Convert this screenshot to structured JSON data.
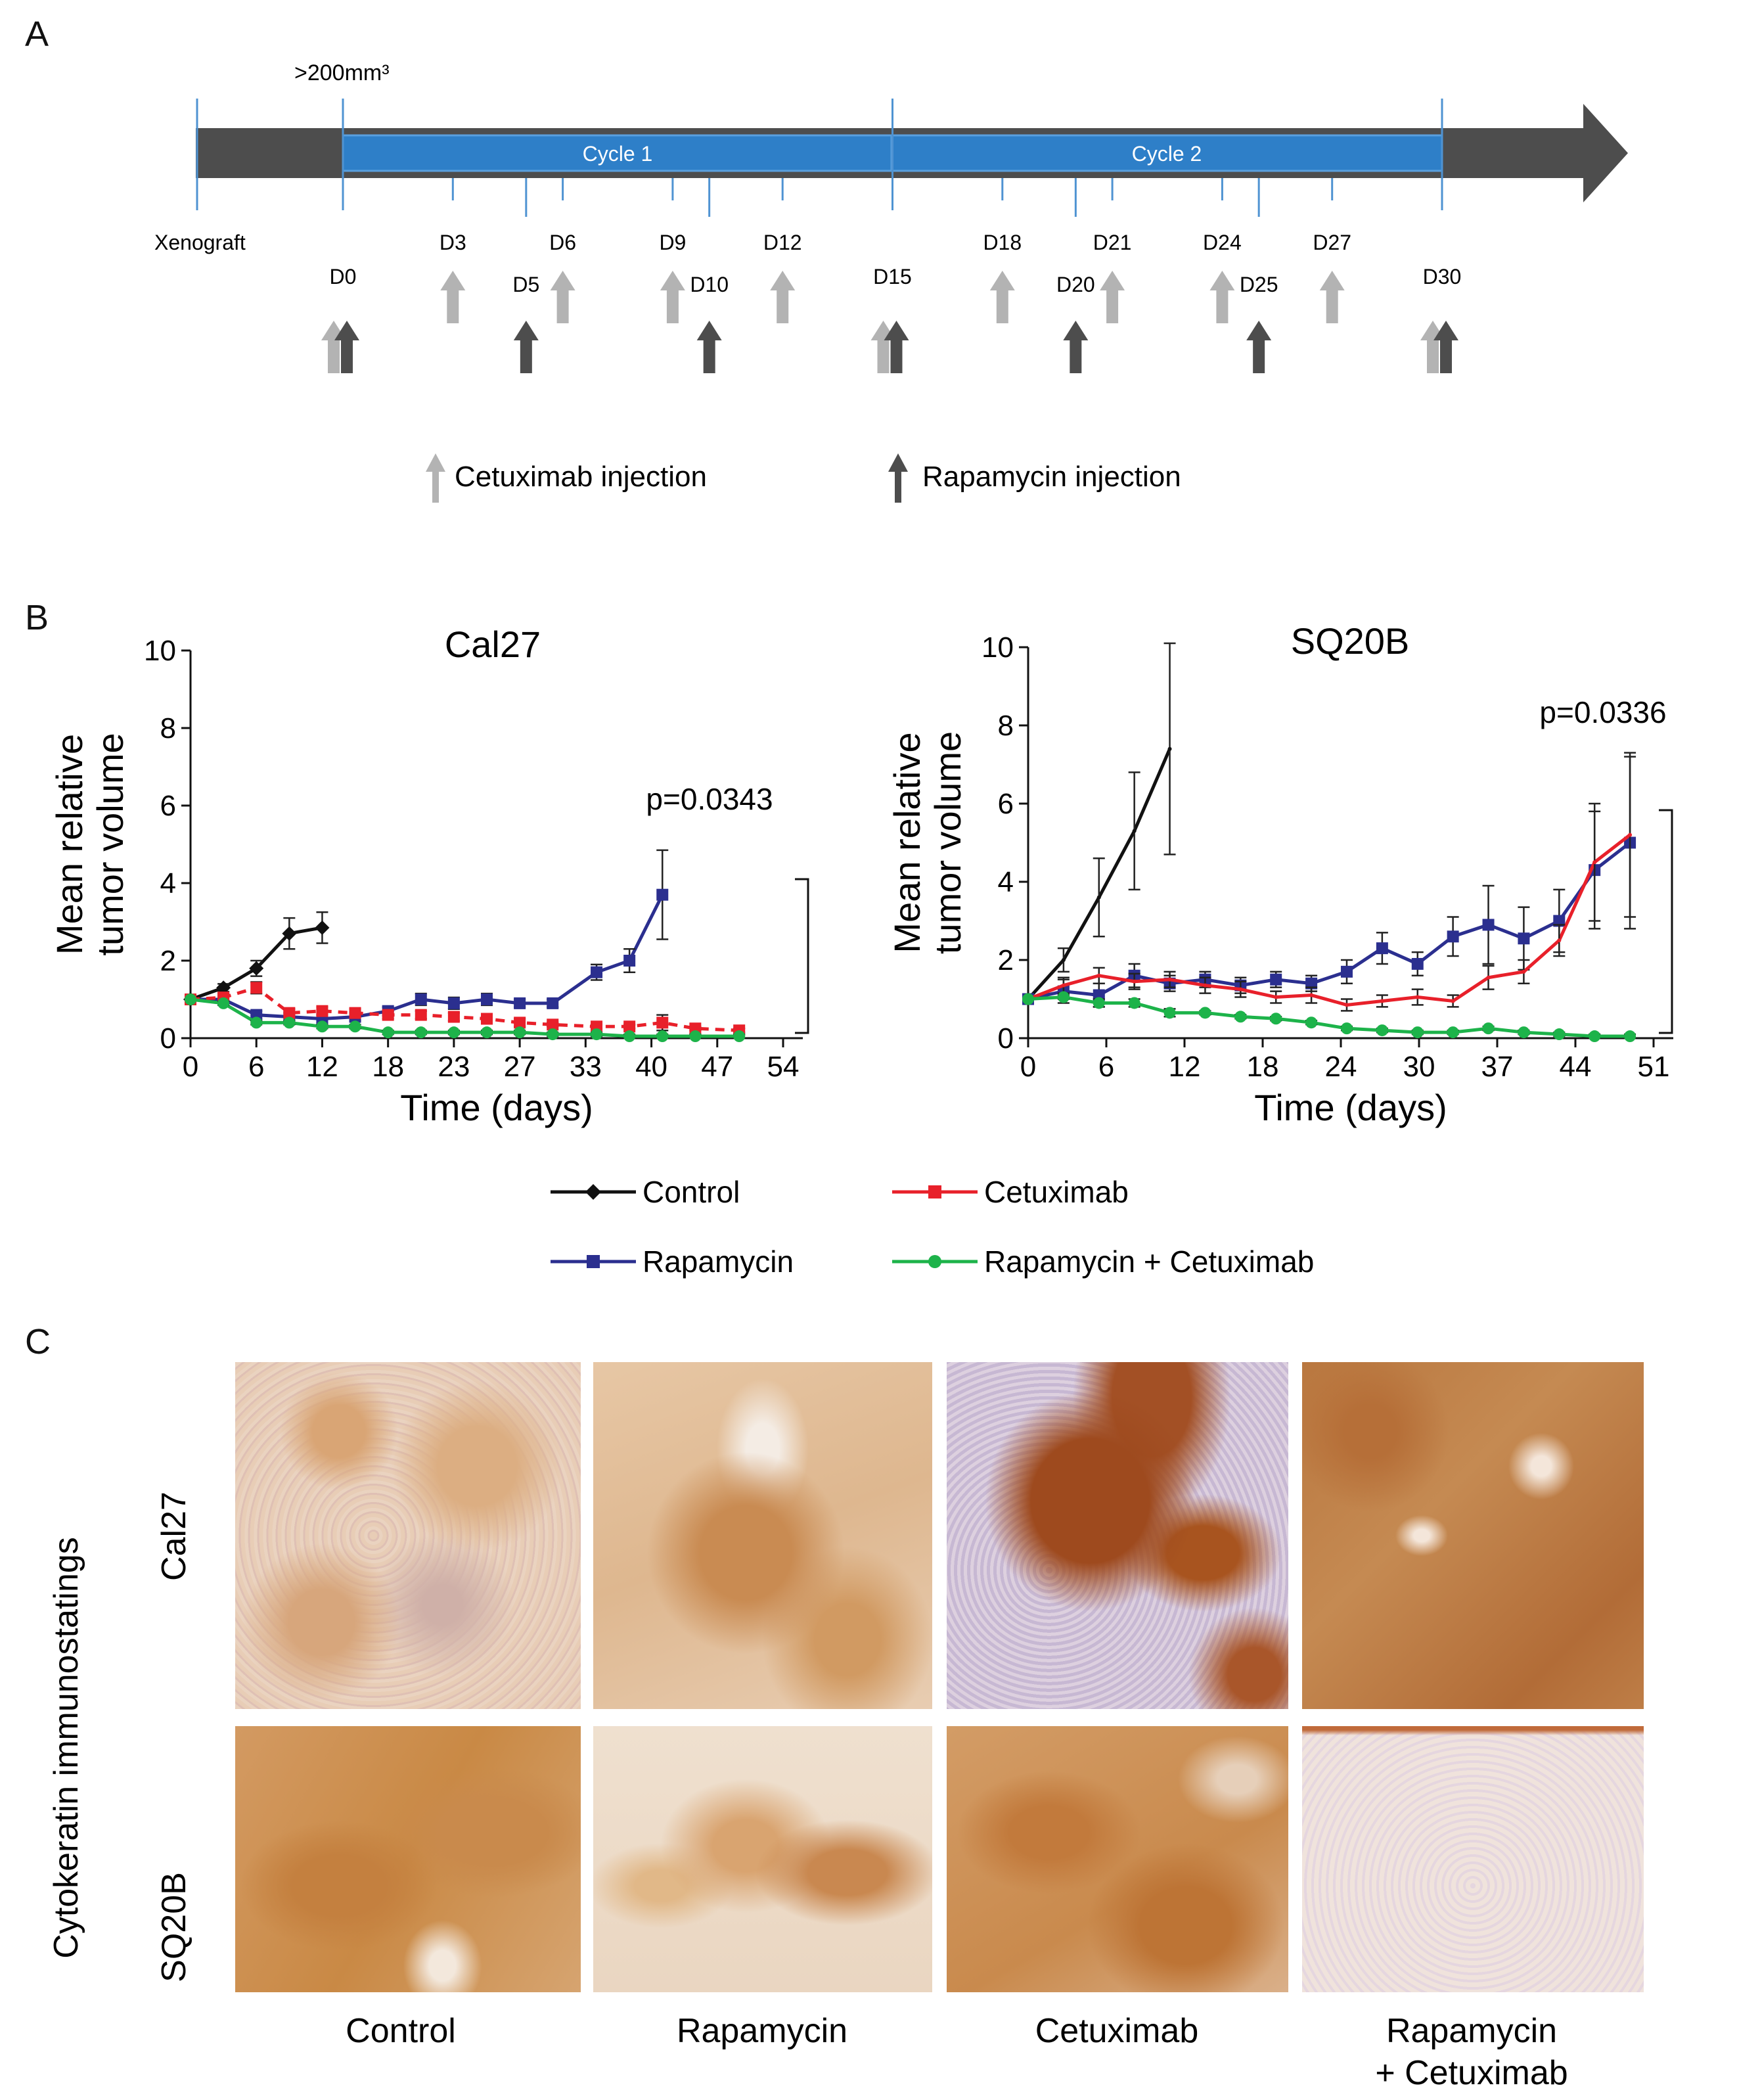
{
  "panels": {
    "a": "A",
    "b": "B",
    "c": "C"
  },
  "timeline": {
    "threshold_label": ">200mm³",
    "cycles": [
      "Cycle 1",
      "Cycle 2"
    ],
    "start_label": "Xenograft",
    "days": [
      {
        "label": "D0",
        "day": 0,
        "agents": [
          "cetuximab",
          "rapamycin"
        ]
      },
      {
        "label": "D3",
        "day": 3,
        "agents": [
          "cetuximab"
        ]
      },
      {
        "label": "D5",
        "day": 5,
        "agents": [
          "rapamycin"
        ]
      },
      {
        "label": "D6",
        "day": 6,
        "agents": [
          "cetuximab"
        ]
      },
      {
        "label": "D9",
        "day": 9,
        "agents": [
          "cetuximab"
        ]
      },
      {
        "label": "D10",
        "day": 10,
        "agents": [
          "rapamycin"
        ]
      },
      {
        "label": "D12",
        "day": 12,
        "agents": [
          "cetuximab"
        ]
      },
      {
        "label": "D15",
        "day": 15,
        "agents": [
          "cetuximab",
          "rapamycin"
        ]
      },
      {
        "label": "D18",
        "day": 18,
        "agents": [
          "cetuximab"
        ]
      },
      {
        "label": "D20",
        "day": 20,
        "agents": [
          "rapamycin"
        ]
      },
      {
        "label": "D21",
        "day": 21,
        "agents": [
          "cetuximab"
        ]
      },
      {
        "label": "D24",
        "day": 24,
        "agents": [
          "cetuximab"
        ]
      },
      {
        "label": "D25",
        "day": 25,
        "agents": [
          "rapamycin"
        ]
      },
      {
        "label": "D27",
        "day": 27,
        "agents": [
          "cetuximab"
        ]
      },
      {
        "label": "D30",
        "day": 30,
        "agents": [
          "cetuximab",
          "rapamycin"
        ]
      }
    ],
    "legend": {
      "cetuximab": "Cetuximab injection",
      "rapamycin": "Rapamycin injection"
    },
    "colors": {
      "bar": "#4d4d4d",
      "cycle": "#2e7fc8",
      "cetuximab_arrow": "#b3b3b3",
      "rapamycin_arrow": "#4d4d4d"
    }
  },
  "chart_data": [
    {
      "type": "line",
      "title": "Cal27",
      "xlabel": "Time (days)",
      "ylabel": "Mean relative tumor volume",
      "ylim": [
        0,
        10
      ],
      "yticks": [
        0,
        2,
        4,
        6,
        8,
        10
      ],
      "xlim": [
        0,
        54
      ],
      "xticks": [
        "0",
        "6",
        "12",
        "18",
        "23",
        "27",
        "33",
        "40",
        "47",
        "54"
      ],
      "annotation": "p=0.0343",
      "series": [
        {
          "name": "Control",
          "color": "#111111",
          "marker": "diamond",
          "dashed": false,
          "points": [
            [
              0,
              1.0
            ],
            [
              3,
              1.3
            ],
            [
              6,
              1.8
            ],
            [
              9,
              2.7
            ],
            [
              12,
              2.85
            ]
          ],
          "errors": [
            0,
            0.1,
            0.2,
            0.4,
            0.4
          ]
        },
        {
          "name": "Rapamycin",
          "color": "#2b2f8f",
          "marker": "square",
          "dashed": false,
          "points": [
            [
              0,
              1.0
            ],
            [
              3,
              1.0
            ],
            [
              6,
              0.6
            ],
            [
              9,
              0.55
            ],
            [
              12,
              0.5
            ],
            [
              15,
              0.55
            ],
            [
              18,
              0.7
            ],
            [
              21,
              1.0
            ],
            [
              24,
              0.9
            ],
            [
              27,
              1.0
            ],
            [
              30,
              0.9
            ],
            [
              33,
              0.9
            ],
            [
              37,
              1.7
            ],
            [
              40,
              2.0
            ],
            [
              43,
              3.7
            ]
          ],
          "errors": [
            0,
            0.1,
            0.1,
            0.1,
            0.1,
            0.1,
            0.1,
            0.15,
            0.15,
            0.15,
            0.1,
            0.1,
            0.2,
            0.3,
            1.15
          ]
        },
        {
          "name": "Cetuximab",
          "color": "#e8202a",
          "marker": "square",
          "dashed": true,
          "points": [
            [
              0,
              1.0
            ],
            [
              3,
              1.05
            ],
            [
              6,
              1.3
            ],
            [
              9,
              0.65
            ],
            [
              12,
              0.7
            ],
            [
              15,
              0.65
            ],
            [
              18,
              0.6
            ],
            [
              21,
              0.6
            ],
            [
              24,
              0.55
            ],
            [
              27,
              0.5
            ],
            [
              30,
              0.4
            ],
            [
              33,
              0.35
            ],
            [
              37,
              0.3
            ],
            [
              40,
              0.3
            ],
            [
              43,
              0.4
            ],
            [
              46,
              0.25
            ],
            [
              50,
              0.2
            ]
          ],
          "errors": [
            0,
            0.1,
            0.15,
            0.1,
            0.1,
            0.1,
            0.1,
            0.1,
            0.1,
            0.1,
            0.1,
            0.05,
            0.05,
            0.05,
            0.2,
            0.05,
            0.05
          ]
        },
        {
          "name": "Rapamycin + Cetuximab",
          "color": "#1db34a",
          "marker": "circle",
          "dashed": false,
          "points": [
            [
              0,
              1.0
            ],
            [
              3,
              0.9
            ],
            [
              6,
              0.4
            ],
            [
              9,
              0.4
            ],
            [
              12,
              0.3
            ],
            [
              15,
              0.3
            ],
            [
              18,
              0.15
            ],
            [
              21,
              0.15
            ],
            [
              24,
              0.15
            ],
            [
              27,
              0.15
            ],
            [
              30,
              0.15
            ],
            [
              33,
              0.1
            ],
            [
              37,
              0.1
            ],
            [
              40,
              0.05
            ],
            [
              43,
              0.05
            ],
            [
              46,
              0.05
            ],
            [
              50,
              0.05
            ]
          ],
          "errors": [
            0,
            0.05,
            0.05,
            0.05,
            0.05,
            0.05,
            0.05,
            0.05,
            0.05,
            0.05,
            0.05,
            0.05,
            0.05,
            0.05,
            0.05,
            0.05,
            0.05
          ]
        }
      ]
    },
    {
      "type": "line",
      "title": "SQ20B",
      "xlabel": "Time (days)",
      "ylabel": "Mean relative tumor volume",
      "ylim": [
        0,
        10
      ],
      "yticks": [
        0,
        2,
        4,
        6,
        8,
        10
      ],
      "xlim": [
        0,
        53
      ],
      "xticks": [
        "0",
        "6",
        "12",
        "18",
        "24",
        "30",
        "37",
        "44",
        "51"
      ],
      "annotation": "p=0.0336",
      "series": [
        {
          "name": "Control",
          "color": "#111111",
          "marker": "none",
          "dashed": false,
          "points": [
            [
              0,
              1.0
            ],
            [
              3,
              2.0
            ],
            [
              6,
              3.6
            ],
            [
              9,
              5.3
            ],
            [
              12,
              7.4
            ]
          ],
          "errors": [
            0,
            0.3,
            1.0,
            1.5,
            2.7
          ]
        },
        {
          "name": "Rapamycin",
          "color": "#2b2f8f",
          "marker": "square",
          "dashed": false,
          "points": [
            [
              0,
              1.0
            ],
            [
              3,
              1.2
            ],
            [
              6,
              1.1
            ],
            [
              9,
              1.6
            ],
            [
              12,
              1.4
            ],
            [
              15,
              1.5
            ],
            [
              18,
              1.35
            ],
            [
              21,
              1.5
            ],
            [
              24,
              1.4
            ],
            [
              27,
              1.7
            ],
            [
              30,
              2.3
            ],
            [
              33,
              1.9
            ],
            [
              36,
              2.6
            ],
            [
              39,
              2.9
            ],
            [
              42,
              2.55
            ],
            [
              45,
              3.0
            ],
            [
              48,
              4.3
            ],
            [
              51,
              5.0
            ]
          ],
          "errors": [
            0,
            0.3,
            0.3,
            0.3,
            0.2,
            0.2,
            0.2,
            0.2,
            0.2,
            0.3,
            0.4,
            0.3,
            0.5,
            1.0,
            0.8,
            0.8,
            1.5,
            2.2
          ]
        },
        {
          "name": "Cetuximab",
          "color": "#e8202a",
          "marker": "none",
          "dashed": false,
          "points": [
            [
              0,
              1.0
            ],
            [
              3,
              1.35
            ],
            [
              6,
              1.6
            ],
            [
              9,
              1.45
            ],
            [
              12,
              1.5
            ],
            [
              15,
              1.35
            ],
            [
              18,
              1.25
            ],
            [
              21,
              1.05
            ],
            [
              24,
              1.1
            ],
            [
              27,
              0.85
            ],
            [
              30,
              0.95
            ],
            [
              33,
              1.05
            ],
            [
              36,
              0.95
            ],
            [
              39,
              1.55
            ],
            [
              42,
              1.7
            ],
            [
              45,
              2.5
            ],
            [
              48,
              4.5
            ],
            [
              51,
              5.2
            ]
          ],
          "errors": [
            0,
            0.2,
            0.2,
            0.2,
            0.2,
            0.2,
            0.2,
            0.15,
            0.2,
            0.15,
            0.15,
            0.2,
            0.15,
            0.3,
            0.3,
            0.4,
            1.5,
            2.1
          ]
        },
        {
          "name": "Rapamycin + Cetuximab",
          "color": "#1db34a",
          "marker": "circle",
          "dashed": false,
          "points": [
            [
              0,
              1.0
            ],
            [
              3,
              1.05
            ],
            [
              6,
              0.9
            ],
            [
              9,
              0.9
            ],
            [
              12,
              0.65
            ],
            [
              15,
              0.65
            ],
            [
              18,
              0.55
            ],
            [
              21,
              0.5
            ],
            [
              24,
              0.4
            ],
            [
              27,
              0.25
            ],
            [
              30,
              0.2
            ],
            [
              33,
              0.15
            ],
            [
              36,
              0.15
            ],
            [
              39,
              0.25
            ],
            [
              42,
              0.15
            ],
            [
              45,
              0.1
            ],
            [
              48,
              0.05
            ],
            [
              51,
              0.05
            ]
          ],
          "errors": [
            0,
            0.05,
            0.1,
            0.1,
            0.1,
            0.05,
            0.05,
            0.05,
            0.05,
            0.05,
            0.05,
            0.05,
            0.05,
            0.05,
            0.05,
            0.05,
            0.05,
            0.05
          ]
        }
      ]
    }
  ],
  "legend": [
    {
      "name": "Control",
      "color": "#111111",
      "marker": "diamond"
    },
    {
      "name": "Cetuximab",
      "color": "#e8202a",
      "marker": "square"
    },
    {
      "name": "Rapamycin",
      "color": "#2b2f8f",
      "marker": "square"
    },
    {
      "name": "Rapamycin + Cetuximab",
      "color": "#1db34a",
      "marker": "circle"
    }
  ],
  "histology": {
    "side_label": "Cytokeratin immunostatings",
    "rows": [
      "Cal27",
      "SQ20B"
    ],
    "columns": [
      "Control",
      "Rapamycin",
      "Cetuximab",
      "Rapamycin\n+ Cetuximab"
    ],
    "stain_color": "#b5651d",
    "background_color": "#efdcc9",
    "nuclei_color": "#7b6ea6"
  }
}
